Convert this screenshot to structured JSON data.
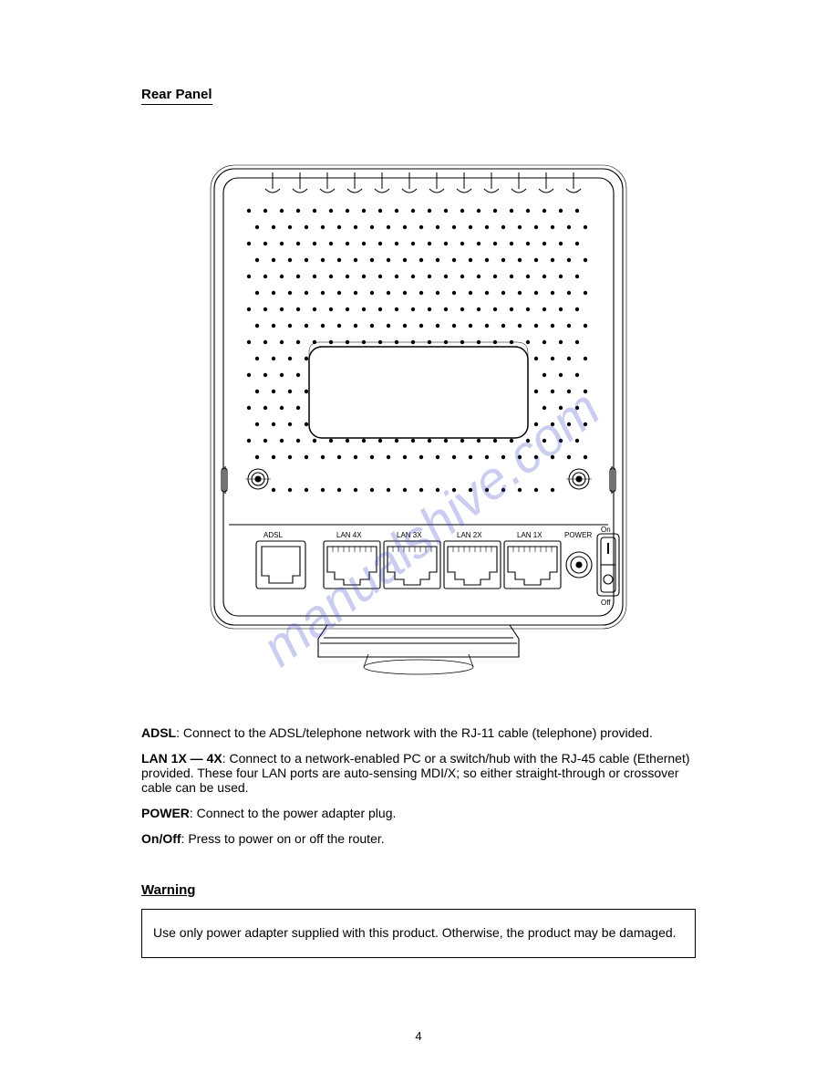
{
  "section_title": "Rear Panel",
  "diagram": {
    "type": "line-drawing",
    "stroke": "#000000",
    "fill": "#ffffff",
    "port_labels": {
      "adsl": "ADSL",
      "lan4": "LAN 4X",
      "lan3": "LAN 3X",
      "lan2": "LAN 2X",
      "lan1": "LAN 1X",
      "power": "POWER",
      "on": "On",
      "off": "Off"
    },
    "label_font_size": 7,
    "background": "#ffffff"
  },
  "watermark": {
    "text": "manualshive.com",
    "color": "#3f4ac8",
    "opacity": 0.28,
    "font_size": 58,
    "rotation_deg": -38
  },
  "connections": [
    {
      "label": "ADSL",
      "desc": ": Connect to the ADSL/telephone network with the RJ-11 cable (telephone) provided."
    },
    {
      "label": "LAN 1X — 4X",
      "desc": ": Connect to a network-enabled PC or a switch/hub with the RJ-45 cable (Ethernet) provided. These four LAN ports are auto-sensing MDI/X; so either straight-through or crossover cable can be used."
    },
    {
      "label": "POWER",
      "desc": ": Connect to the power adapter plug."
    },
    {
      "label": "On/Off",
      "desc": ": Press to power on or off the router."
    }
  ],
  "warning": {
    "heading": "Warning",
    "body": "Use only power adapter supplied with this product. Otherwise, the product may be damaged."
  },
  "page_number": "4"
}
